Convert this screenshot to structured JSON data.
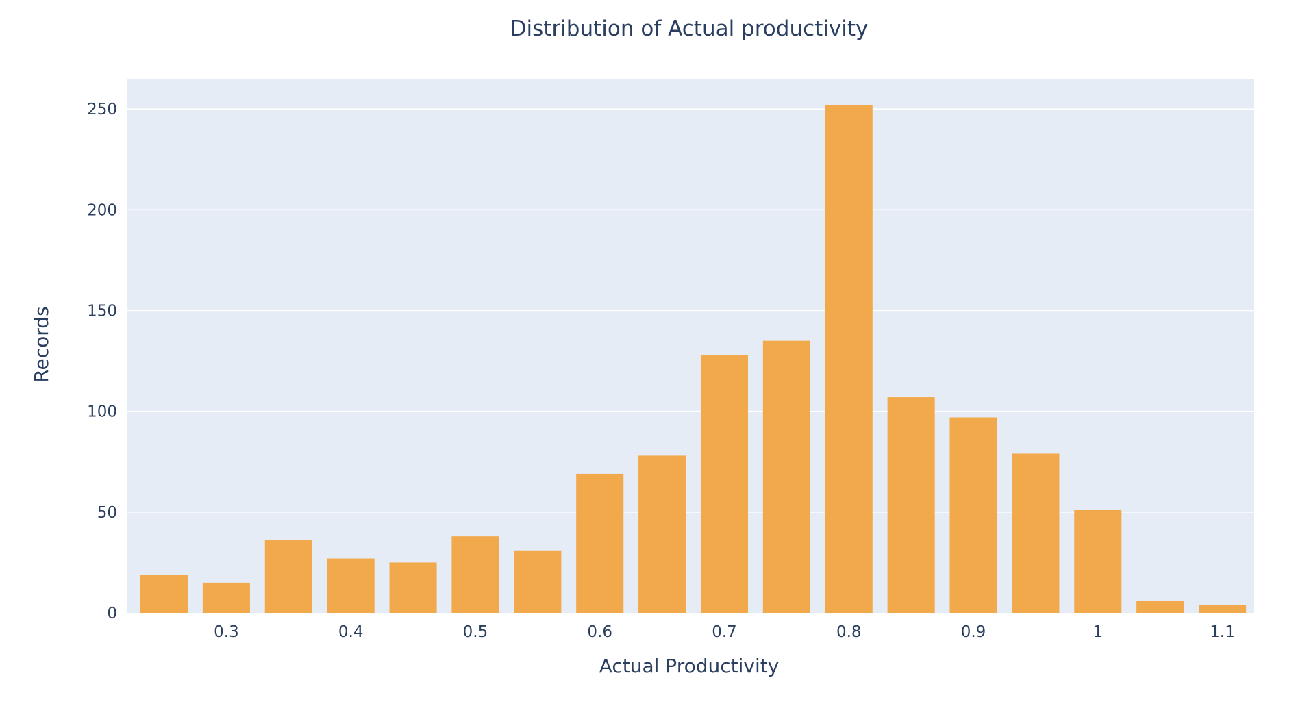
{
  "chart_data": {
    "type": "bar",
    "title": "Distribution of Actual productivity",
    "xlabel": "Actual Productivity",
    "ylabel": "Records",
    "bin_width": 0.05,
    "bin_starts": [
      0.225,
      0.275,
      0.325,
      0.375,
      0.425,
      0.475,
      0.525,
      0.575,
      0.625,
      0.675,
      0.725,
      0.775,
      0.825,
      0.875,
      0.925,
      0.975,
      1.025,
      1.075
    ],
    "values": [
      19,
      15,
      36,
      27,
      25,
      38,
      31,
      69,
      78,
      128,
      135,
      252,
      107,
      97,
      79,
      51,
      6,
      4
    ],
    "xlim": [
      0.22,
      1.125
    ],
    "ylim": [
      0,
      265
    ],
    "x_ticks": [
      0.3,
      0.4,
      0.5,
      0.6,
      0.7,
      0.8,
      0.9,
      1.0,
      1.1
    ],
    "x_tick_labels": [
      "0.3",
      "0.4",
      "0.5",
      "0.6",
      "0.7",
      "0.8",
      "0.9",
      "1",
      "1.1"
    ],
    "y_ticks": [
      0,
      50,
      100,
      150,
      200,
      250
    ],
    "y_tick_labels": [
      "0",
      "50",
      "100",
      "150",
      "200",
      "250"
    ],
    "grid": true,
    "bar_color": "#f2a94c",
    "plot_bg": "#e5ecf6",
    "text_color": "#2a3f5f"
  }
}
